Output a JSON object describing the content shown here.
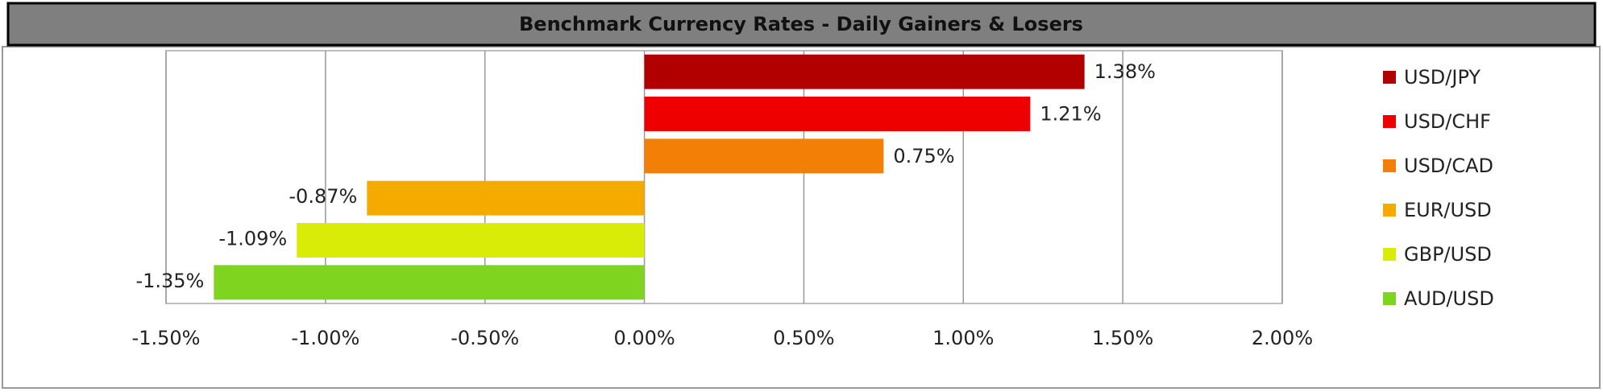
{
  "chart_data": {
    "type": "bar",
    "orientation": "horizontal",
    "title": "Benchmark Currency Rates - Daily Gainers & Losers",
    "categories": [
      "USD/JPY",
      "USD/CHF",
      "USD/CAD",
      "EUR/USD",
      "GBP/USD",
      "AUD/USD"
    ],
    "values": [
      1.38,
      1.21,
      0.75,
      -0.87,
      -1.09,
      -1.35
    ],
    "value_labels": [
      "1.38%",
      "1.21%",
      "0.75%",
      "-0.87%",
      "-1.09%",
      "-1.35%"
    ],
    "colors": [
      "#b20000",
      "#ee0000",
      "#f37f06",
      "#f5aa00",
      "#d9ec08",
      "#7ed41e"
    ],
    "xlim": [
      -1.5,
      2.0
    ],
    "xticks": [
      {
        "value": -1.5,
        "label": "-1.50%"
      },
      {
        "value": -1.0,
        "label": "-1.00%"
      },
      {
        "value": -0.5,
        "label": "-0.50%"
      },
      {
        "value": 0,
        "label": "0.00%"
      },
      {
        "value": 0.5,
        "label": "0.50%"
      },
      {
        "value": 1.0,
        "label": "1.00%"
      },
      {
        "value": 1.5,
        "label": "1.50%"
      },
      {
        "value": 2.0,
        "label": "2.00%"
      }
    ],
    "grid": true,
    "legend": "right"
  }
}
